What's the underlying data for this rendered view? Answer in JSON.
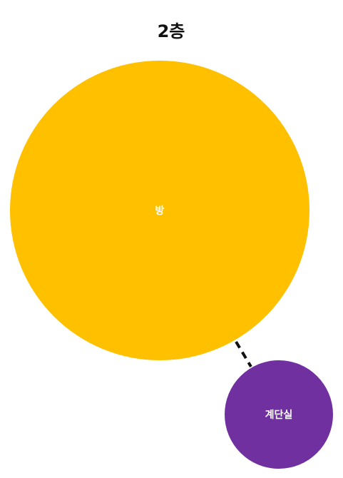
{
  "diagram": {
    "title": "2층",
    "nodes": [
      {
        "id": "room",
        "label": "방",
        "color": "#FFC000"
      },
      {
        "id": "stairwell",
        "label": "계단실",
        "color": "#7030A0"
      }
    ],
    "edges": [
      {
        "from": "room",
        "to": "stairwell",
        "style": "dashed",
        "color": "#111111"
      }
    ]
  }
}
